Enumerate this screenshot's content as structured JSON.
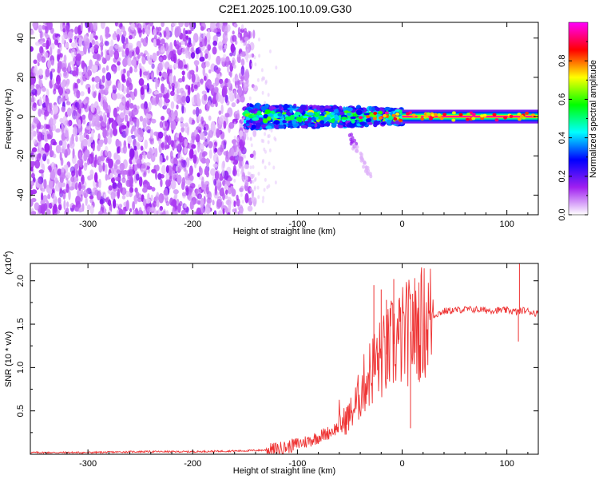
{
  "figure": {
    "title": "C2E1.2025.100.10.09.G30"
  },
  "chart_data": [
    {
      "type": "heatmap",
      "xlabel": "Height of straight line (km)",
      "ylabel": "Frequency (Hz)",
      "xlim": [
        -355,
        130
      ],
      "ylim": [
        -50,
        48
      ],
      "x_ticks": [
        -300,
        -200,
        -100,
        0,
        100
      ],
      "y_ticks": [
        -40,
        -20,
        0,
        20,
        40
      ],
      "colorbar": {
        "label": "Normalized spectral amplitude",
        "range": [
          0,
          1
        ],
        "ticks": [
          "0.0",
          "0.2",
          "0.4",
          "0.6",
          "0.8"
        ],
        "tick_values": [
          0,
          0.2,
          0.4,
          0.6,
          0.8
        ],
        "colors": [
          "#ffffff",
          "#a020f0",
          "#0000ff",
          "#00ffff",
          "#00ff00",
          "#ffff00",
          "#ff0000",
          "#ff00ff"
        ]
      },
      "regions": [
        {
          "x_range": [
            -355,
            -140
          ],
          "y_range": [
            -50,
            48
          ],
          "amplitude": "low-scattered",
          "peak_amplitude": 0.15
        },
        {
          "x_range": [
            -150,
            0
          ],
          "y_range": [
            -8,
            6
          ],
          "amplitude": "medium",
          "peak_amplitude": 0.7
        },
        {
          "x_range": [
            0,
            130
          ],
          "y_range": [
            -2,
            2
          ],
          "amplitude": "high",
          "peak_amplitude": 0.95
        }
      ],
      "feature": {
        "description_note": "",
        "x_from": -50,
        "y_from": -10,
        "x_to": -30,
        "y_to": -30
      }
    },
    {
      "type": "line",
      "xlabel": "Height of straight line (km)",
      "ylabel": "SNR (10 * v/v)",
      "y_multiplier": "(x10⁴)",
      "y_multiplier_base": "(x10",
      "y_multiplier_exp": "4",
      "y_multiplier_close": ")",
      "xlim": [
        -355,
        130
      ],
      "ylim": [
        0,
        2.2
      ],
      "x_ticks": [
        -300,
        -200,
        -100,
        0,
        100
      ],
      "y_ticks": [
        0.5,
        1.0,
        1.5,
        2.0
      ],
      "y_tick_labels": [
        "0.5",
        "1.0",
        "1.5",
        "2.0"
      ],
      "series": [
        {
          "color": "#ee3333",
          "points": [
            [
              -355,
              0.02
            ],
            [
              -300,
              0.02
            ],
            [
              -250,
              0.03
            ],
            [
              -200,
              0.03
            ],
            [
              -150,
              0.04
            ],
            [
              -125,
              0.05
            ],
            [
              -110,
              0.08
            ],
            [
              -100,
              0.12
            ],
            [
              -90,
              0.15
            ],
            [
              -80,
              0.2
            ],
            [
              -70,
              0.25
            ],
            [
              -60,
              0.32
            ],
            [
              -50,
              0.45
            ],
            [
              -45,
              0.55
            ],
            [
              -40,
              0.7
            ],
            [
              -35,
              0.85
            ],
            [
              -30,
              0.95
            ],
            [
              -25,
              1.05
            ],
            [
              -20,
              1.1
            ],
            [
              -15,
              1.15
            ],
            [
              -10,
              1.25
            ],
            [
              -5,
              1.3
            ],
            [
              0,
              1.35
            ],
            [
              5,
              1.4
            ],
            [
              10,
              1.42
            ],
            [
              15,
              1.48
            ],
            [
              20,
              1.52
            ],
            [
              25,
              1.55
            ],
            [
              30,
              1.6
            ],
            [
              40,
              1.65
            ],
            [
              50,
              1.66
            ],
            [
              60,
              1.67
            ],
            [
              70,
              1.67
            ],
            [
              80,
              1.66
            ],
            [
              90,
              1.66
            ],
            [
              100,
              1.66
            ],
            [
              105,
              1.65
            ],
            [
              110,
              1.64
            ],
            [
              115,
              1.66
            ],
            [
              120,
              1.65
            ],
            [
              130,
              1.62
            ]
          ],
          "spikes": [
            [
              -27,
              1.95
            ],
            [
              -20,
              1.9
            ],
            [
              -15,
              1.78
            ],
            [
              -8,
              2.02
            ],
            [
              -3,
              1.78
            ],
            [
              10,
              1.85
            ],
            [
              8,
              0.3
            ],
            [
              112,
              2.2
            ],
            [
              111,
              1.3
            ]
          ]
        }
      ]
    }
  ]
}
